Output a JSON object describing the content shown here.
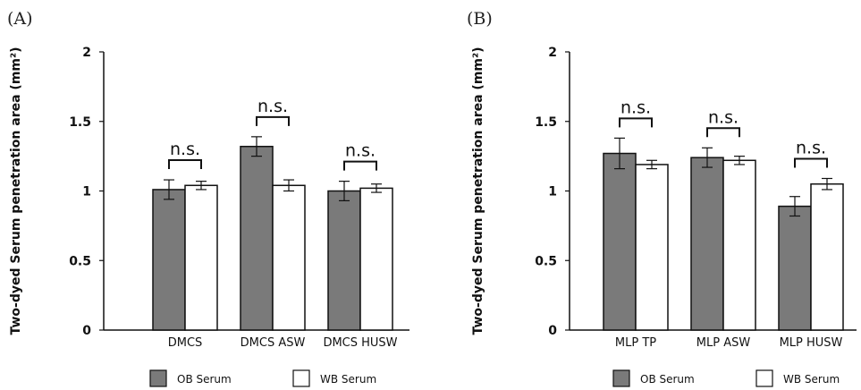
{
  "colors": {
    "ob": "#7a7a7a",
    "wb": "#ffffff",
    "stroke": "#111111"
  },
  "legend": {
    "ob_label": "OB Serum",
    "wb_label": "WB Serum"
  },
  "chart_data": [
    {
      "panel": "(A)",
      "type": "bar",
      "ylabel": "Two-dyed Serum penetration area (mm²)",
      "ylim": [
        0,
        2
      ],
      "yticks": [
        "0",
        "0.5",
        "1",
        "1.5",
        "2"
      ],
      "categories": [
        "DMCS",
        "DMCS ASW",
        "DMCS HUSW"
      ],
      "series": [
        {
          "name": "OB Serum",
          "values": [
            1.01,
            1.32,
            1.0
          ],
          "errors": [
            0.07,
            0.07,
            0.07
          ]
        },
        {
          "name": "WB Serum",
          "values": [
            1.04,
            1.04,
            1.02
          ],
          "errors": [
            0.03,
            0.04,
            0.03
          ]
        }
      ],
      "annotations": [
        "n.s.",
        "n.s.",
        "n.s."
      ]
    },
    {
      "panel": "(B)",
      "type": "bar",
      "ylabel": "Two-dyed Serum penetration area (mm²)",
      "ylim": [
        0,
        2
      ],
      "yticks": [
        "0",
        "0.5",
        "1",
        "1.5",
        "2"
      ],
      "categories": [
        "MLP TP",
        "MLP ASW",
        "MLP HUSW"
      ],
      "series": [
        {
          "name": "OB Serum",
          "values": [
            1.27,
            1.24,
            0.89
          ],
          "errors": [
            0.11,
            0.07,
            0.07
          ]
        },
        {
          "name": "WB Serum",
          "values": [
            1.19,
            1.22,
            1.05
          ],
          "errors": [
            0.03,
            0.03,
            0.04
          ]
        }
      ],
      "annotations": [
        "n.s.",
        "n.s.",
        "n.s."
      ]
    }
  ]
}
